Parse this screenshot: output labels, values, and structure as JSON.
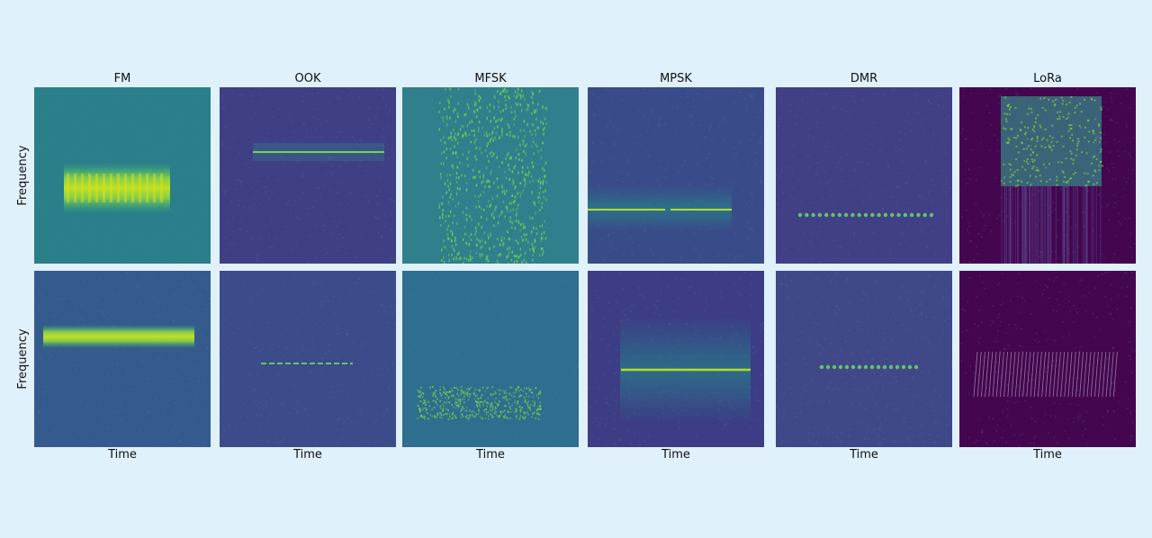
{
  "chart_data": {
    "type": "heatmap",
    "description_kind": "spectrogram grid",
    "columns": [
      "FM",
      "OOK",
      "MFSK",
      "MPSK",
      "DMR",
      "LoRa"
    ],
    "xlabel": "Time",
    "ylabel": "Frequency",
    "rows": 2,
    "colormap": "viridis",
    "panels": [
      {
        "row": 0,
        "col": 0,
        "signal": "FM",
        "bg": "#2a7f8a",
        "pattern": "band"
      },
      {
        "row": 0,
        "col": 1,
        "signal": "OOK",
        "bg": "#3f3f85",
        "pattern": "line"
      },
      {
        "row": 0,
        "col": 2,
        "signal": "MFSK",
        "bg": "#2f808c",
        "pattern": "fsk"
      },
      {
        "row": 0,
        "col": 3,
        "signal": "MPSK",
        "bg": "#3a4b8a",
        "pattern": "psk"
      },
      {
        "row": 0,
        "col": 4,
        "signal": "DMR",
        "bg": "#413f85",
        "pattern": "dots"
      },
      {
        "row": 0,
        "col": 5,
        "signal": "LoRa",
        "bg": "#44064f",
        "pattern": "lora-top"
      },
      {
        "row": 1,
        "col": 0,
        "signal": "FM",
        "bg": "#355b8e",
        "pattern": "band"
      },
      {
        "row": 1,
        "col": 1,
        "signal": "OOK",
        "bg": "#3c4b89",
        "pattern": "line"
      },
      {
        "row": 1,
        "col": 2,
        "signal": "MFSK",
        "bg": "#2e6e8e",
        "pattern": "fsk"
      },
      {
        "row": 1,
        "col": 3,
        "signal": "MPSK",
        "bg": "#3c3d85",
        "pattern": "psk"
      },
      {
        "row": 1,
        "col": 4,
        "signal": "DMR",
        "bg": "#414888",
        "pattern": "dots"
      },
      {
        "row": 1,
        "col": 5,
        "signal": "LoRa",
        "bg": "#44064f",
        "pattern": "lora-chirp"
      }
    ]
  }
}
